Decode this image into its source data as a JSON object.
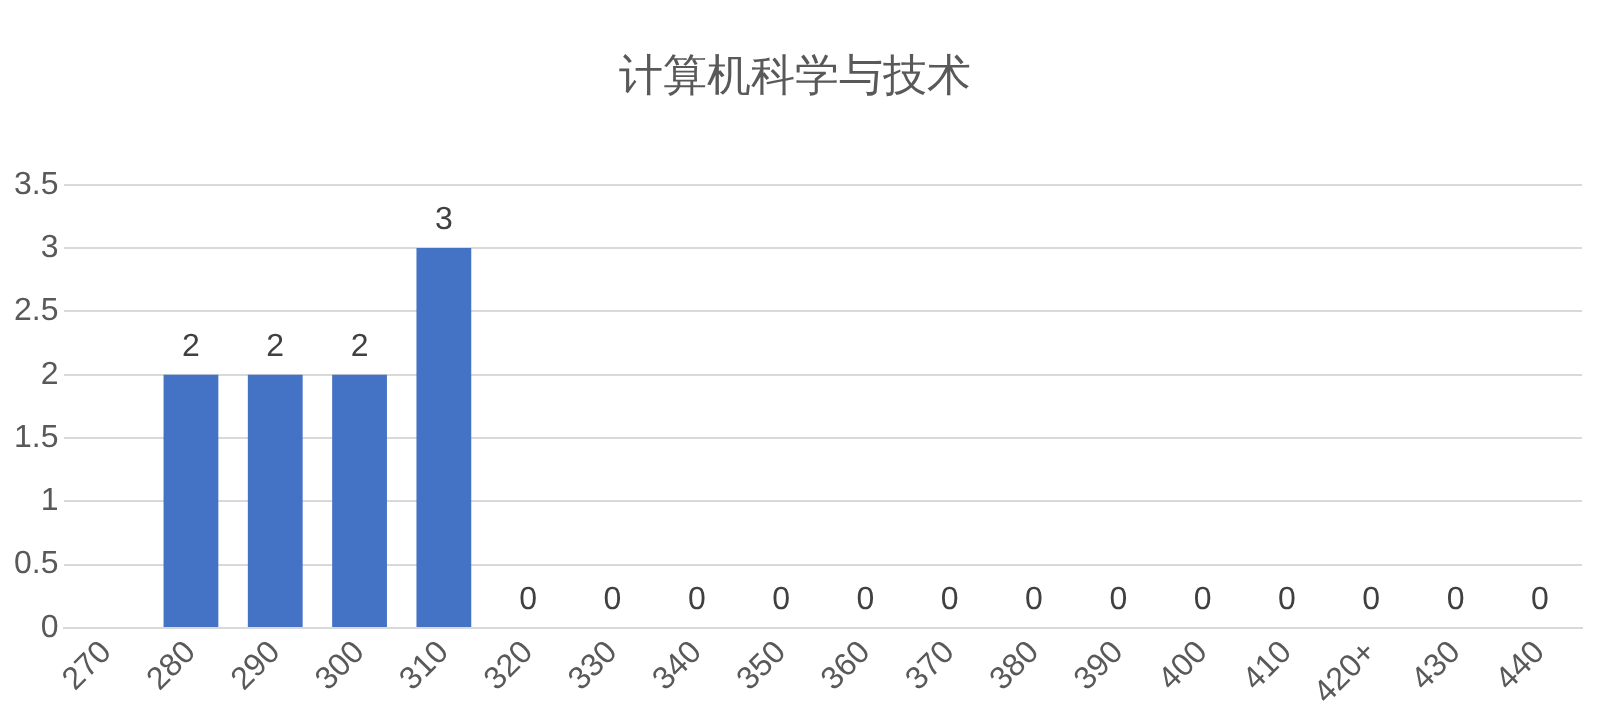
{
  "chart_data": {
    "type": "bar",
    "title": "计算机科学与技术",
    "categories": [
      "270",
      "280",
      "290",
      "300",
      "310",
      "320",
      "330",
      "340",
      "350",
      "360",
      "370",
      "380",
      "390",
      "400",
      "410",
      "420+",
      "430",
      "440"
    ],
    "values": [
      null,
      2,
      2,
      2,
      3,
      0,
      0,
      0,
      0,
      0,
      0,
      0,
      0,
      0,
      0,
      0,
      0,
      0
    ],
    "color": "#4472c4",
    "ylim": [
      0,
      3.5
    ],
    "yticks": [
      0,
      0.5,
      1,
      1.5,
      2,
      2.5,
      3,
      3.5
    ],
    "grid": "y",
    "data_labels": true,
    "legend": false
  }
}
